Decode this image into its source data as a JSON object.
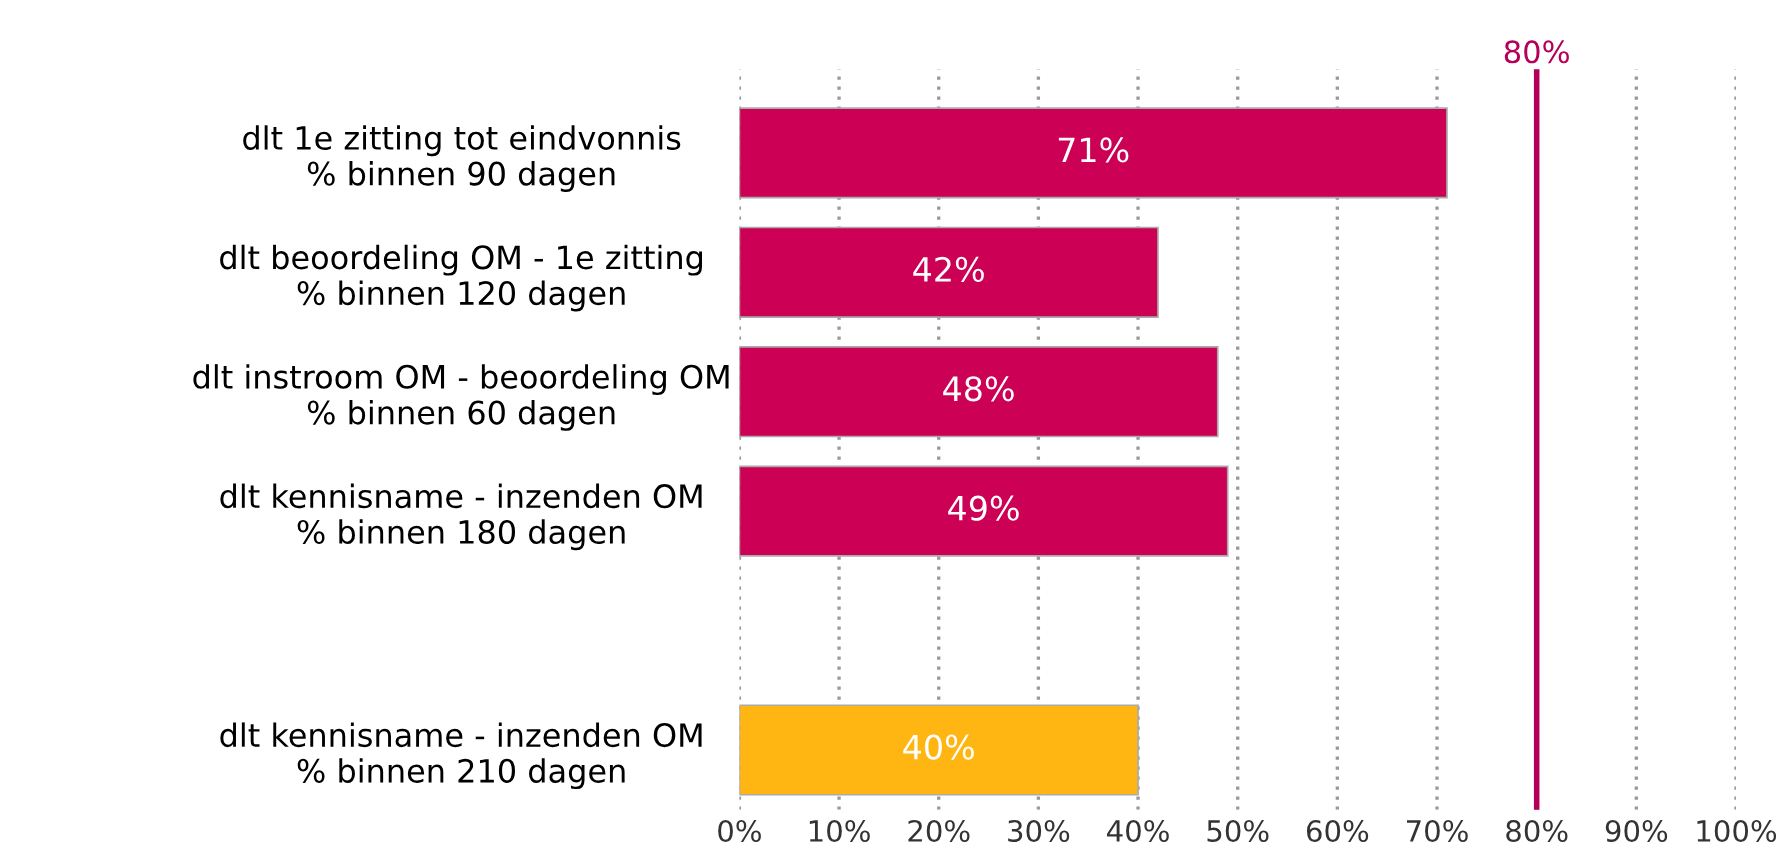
{
  "chart_data": {
    "type": "bar",
    "orientation": "horizontal",
    "categories": [
      "dlt 1e zitting tot eindvonnis\n% binnen 90 dagen",
      "dlt beoordeling OM - 1e zitting\n% binnen 120 dagen",
      "dlt instroom OM - beoordeling OM\n% binnen 60 dagen",
      "dlt kennisname - inzenden OM\n% binnen 180 dagen",
      null,
      "dlt kennisname - inzenden OM\n% binnen 210 dagen"
    ],
    "values": [
      71,
      42,
      48,
      49,
      null,
      40
    ],
    "colors": [
      "#cc0055",
      "#cc0055",
      "#cc0055",
      "#cc0055",
      "#cc0055",
      "#ffb612"
    ],
    "value_labels": [
      "71%",
      "42%",
      "48%",
      "49%",
      null,
      "40%"
    ],
    "xlim": [
      0,
      100
    ],
    "xticks": [
      {
        "value": 0,
        "label": "0%"
      },
      {
        "value": 10,
        "label": "10%"
      },
      {
        "value": 20,
        "label": "20%"
      },
      {
        "value": 30,
        "label": "30%"
      },
      {
        "value": 40,
        "label": "40%"
      },
      {
        "value": 50,
        "label": "50%"
      },
      {
        "value": 60,
        "label": "60%"
      },
      {
        "value": 70,
        "label": "70%"
      },
      {
        "value": 80,
        "label": "80%"
      },
      {
        "value": 90,
        "label": "90%"
      },
      {
        "value": 100,
        "label": "100%"
      }
    ],
    "grid": "x",
    "ref_lines": [
      {
        "axis": "x",
        "value": 80,
        "label": "80%",
        "color": "#b5005a"
      }
    ]
  }
}
